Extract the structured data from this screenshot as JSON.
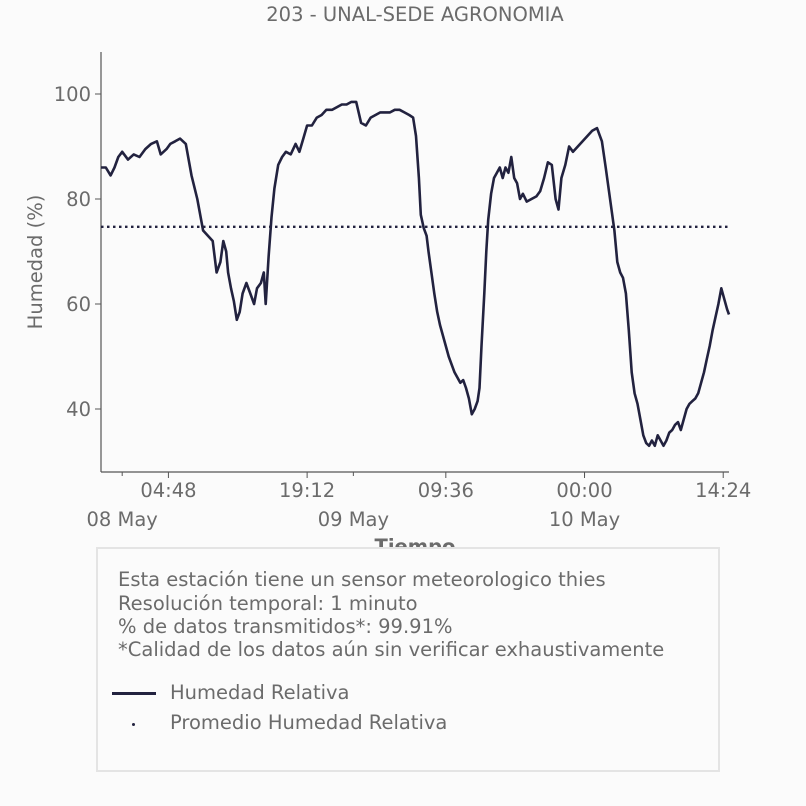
{
  "chart_data": {
    "type": "line",
    "title": "203 - UNAL-SEDE AGRONOMIA",
    "xlabel": "Tiempo",
    "ylabel": "Humedad (%)",
    "ylim": [
      28,
      108
    ],
    "y_ticks": [
      40,
      60,
      80,
      100
    ],
    "x_ticks": [
      {
        "t": 4.8,
        "label": "04:48"
      },
      {
        "t": 19.2,
        "label": "19:12"
      },
      {
        "t": 33.6,
        "label": "09:36"
      },
      {
        "t": 48.0,
        "label": "00:00"
      },
      {
        "t": 62.4,
        "label": "14:24"
      }
    ],
    "date_labels": [
      {
        "t": 0,
        "label": "08 May"
      },
      {
        "t": 24,
        "label": "09 May"
      },
      {
        "t": 48,
        "label": "10 May"
      }
    ],
    "grid": false,
    "mean": 74.7,
    "series": [
      {
        "name": "Humedad Relativa",
        "color": "#22223f",
        "points": [
          [
            -2.2,
            86
          ],
          [
            -1.7,
            86
          ],
          [
            -1.2,
            84.5
          ],
          [
            -0.8,
            86
          ],
          [
            -0.4,
            88
          ],
          [
            0.0,
            89
          ],
          [
            0.6,
            87.5
          ],
          [
            1.2,
            88.5
          ],
          [
            1.8,
            88
          ],
          [
            2.4,
            89.5
          ],
          [
            3.0,
            90.5
          ],
          [
            3.6,
            91
          ],
          [
            4.0,
            88.5
          ],
          [
            4.6,
            89.5
          ],
          [
            5.0,
            90.5
          ],
          [
            5.5,
            91
          ],
          [
            6.0,
            91.5
          ],
          [
            6.6,
            90.5
          ],
          [
            7.2,
            84.5
          ],
          [
            7.8,
            80
          ],
          [
            8.4,
            74
          ],
          [
            8.9,
            73
          ],
          [
            9.4,
            72
          ],
          [
            9.8,
            66
          ],
          [
            10.2,
            68
          ],
          [
            10.5,
            72
          ],
          [
            10.8,
            70
          ],
          [
            11.0,
            66
          ],
          [
            11.3,
            63
          ],
          [
            11.6,
            60.5
          ],
          [
            11.9,
            57
          ],
          [
            12.2,
            58.5
          ],
          [
            12.5,
            62
          ],
          [
            12.9,
            64
          ],
          [
            13.3,
            62
          ],
          [
            13.7,
            60
          ],
          [
            14.0,
            63
          ],
          [
            14.4,
            64
          ],
          [
            14.7,
            66
          ],
          [
            14.9,
            60
          ],
          [
            15.2,
            69
          ],
          [
            15.5,
            76.5
          ],
          [
            15.8,
            82
          ],
          [
            16.2,
            86.5
          ],
          [
            16.6,
            88
          ],
          [
            17.0,
            89
          ],
          [
            17.5,
            88.5
          ],
          [
            18.0,
            90.5
          ],
          [
            18.4,
            89
          ],
          [
            18.8,
            91.5
          ],
          [
            19.2,
            94
          ],
          [
            19.7,
            94
          ],
          [
            20.2,
            95.5
          ],
          [
            20.7,
            96
          ],
          [
            21.2,
            97
          ],
          [
            21.8,
            97
          ],
          [
            22.3,
            97.5
          ],
          [
            22.8,
            98
          ],
          [
            23.3,
            98
          ],
          [
            23.8,
            98.5
          ],
          [
            24.3,
            98.5
          ],
          [
            24.8,
            94.5
          ],
          [
            25.3,
            94
          ],
          [
            25.8,
            95.5
          ],
          [
            26.3,
            96
          ],
          [
            26.8,
            96.5
          ],
          [
            27.3,
            96.5
          ],
          [
            27.8,
            96.5
          ],
          [
            28.3,
            97
          ],
          [
            28.8,
            97
          ],
          [
            29.3,
            96.5
          ],
          [
            29.8,
            96
          ],
          [
            30.2,
            95.5
          ],
          [
            30.5,
            92
          ],
          [
            30.8,
            84
          ],
          [
            31.0,
            77
          ],
          [
            31.3,
            74.5
          ],
          [
            31.6,
            73
          ],
          [
            31.8,
            70
          ],
          [
            32.1,
            66
          ],
          [
            32.4,
            62
          ],
          [
            32.7,
            58.5
          ],
          [
            33.0,
            56
          ],
          [
            33.3,
            54
          ],
          [
            33.6,
            52
          ],
          [
            33.9,
            50
          ],
          [
            34.2,
            48.5
          ],
          [
            34.5,
            47
          ],
          [
            34.8,
            46
          ],
          [
            35.1,
            45
          ],
          [
            35.4,
            45.5
          ],
          [
            35.7,
            44
          ],
          [
            36.0,
            42
          ],
          [
            36.3,
            39
          ],
          [
            36.6,
            40
          ],
          [
            36.9,
            41.5
          ],
          [
            37.1,
            44
          ],
          [
            37.3,
            52
          ],
          [
            37.6,
            62
          ],
          [
            37.8,
            70
          ],
          [
            38.0,
            76
          ],
          [
            38.3,
            81
          ],
          [
            38.6,
            84
          ],
          [
            38.9,
            85
          ],
          [
            39.2,
            86
          ],
          [
            39.5,
            84
          ],
          [
            39.8,
            86
          ],
          [
            40.1,
            85
          ],
          [
            40.4,
            88
          ],
          [
            40.7,
            84
          ],
          [
            41.0,
            83
          ],
          [
            41.3,
            80
          ],
          [
            41.6,
            81
          ],
          [
            42.0,
            79.5
          ],
          [
            42.5,
            80
          ],
          [
            43.0,
            80.5
          ],
          [
            43.4,
            81.5
          ],
          [
            43.8,
            84
          ],
          [
            44.2,
            87
          ],
          [
            44.6,
            86.5
          ],
          [
            45.0,
            80
          ],
          [
            45.3,
            78
          ],
          [
            45.6,
            84
          ],
          [
            46.0,
            86.5
          ],
          [
            46.4,
            90
          ],
          [
            46.8,
            89
          ],
          [
            47.3,
            90
          ],
          [
            47.8,
            91
          ],
          [
            48.3,
            92
          ],
          [
            48.8,
            93
          ],
          [
            49.3,
            93.5
          ],
          [
            49.8,
            91
          ],
          [
            50.2,
            86
          ],
          [
            50.5,
            82
          ],
          [
            50.8,
            78
          ],
          [
            51.1,
            74
          ],
          [
            51.4,
            68
          ],
          [
            51.7,
            66
          ],
          [
            52.0,
            65
          ],
          [
            52.3,
            62
          ],
          [
            52.6,
            55
          ],
          [
            52.9,
            47
          ],
          [
            53.2,
            43
          ],
          [
            53.5,
            41
          ],
          [
            53.8,
            38
          ],
          [
            54.1,
            35
          ],
          [
            54.4,
            33.5
          ],
          [
            54.7,
            33
          ],
          [
            55.0,
            34
          ],
          [
            55.3,
            33
          ],
          [
            55.6,
            35
          ],
          [
            55.9,
            34
          ],
          [
            56.2,
            33
          ],
          [
            56.5,
            34
          ],
          [
            56.8,
            35.5
          ],
          [
            57.1,
            36
          ],
          [
            57.4,
            37
          ],
          [
            57.7,
            37.5
          ],
          [
            58.0,
            36
          ],
          [
            58.3,
            38
          ],
          [
            58.6,
            40
          ],
          [
            58.9,
            41
          ],
          [
            59.2,
            41.5
          ],
          [
            59.5,
            42
          ],
          [
            59.8,
            43
          ],
          [
            60.1,
            45
          ],
          [
            60.4,
            47
          ],
          [
            60.7,
            49.5
          ],
          [
            61.0,
            52
          ],
          [
            61.3,
            55
          ],
          [
            61.6,
            57.5
          ],
          [
            61.9,
            60
          ],
          [
            62.2,
            63
          ],
          [
            62.5,
            61
          ],
          [
            62.8,
            59
          ],
          [
            63.0,
            58
          ]
        ]
      },
      {
        "name": "Promedio Humedad Relativa",
        "color": "#22223f",
        "style": "dotted"
      }
    ]
  },
  "info": {
    "lines": [
      "Esta estación tiene un sensor meteorologico thies",
      "Resolución temporal: 1 minuto",
      "% de datos transmitidos*: 99.91%",
      "*Calidad de los datos aún sin verificar exhaustivamente"
    ]
  }
}
